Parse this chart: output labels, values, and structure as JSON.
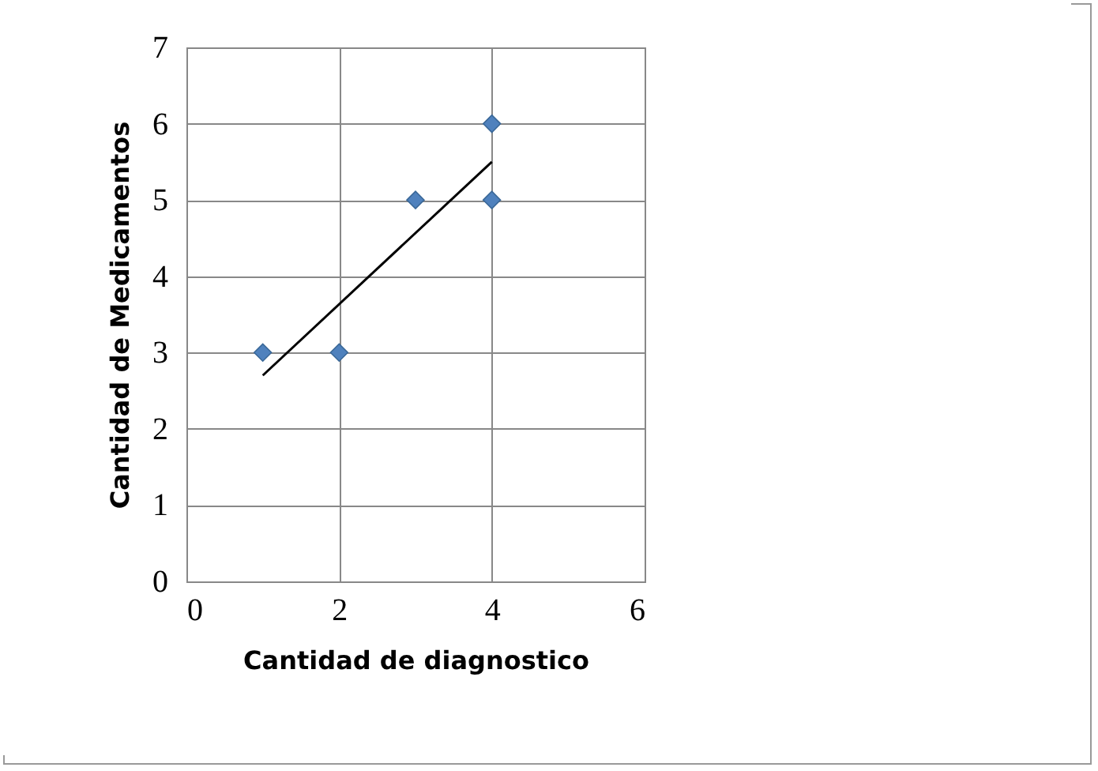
{
  "chart_data": {
    "type": "scatter",
    "xlabel": "Cantidad de diagnostico",
    "ylabel": "Cantidad de Medicamentos",
    "xlim": [
      0,
      6
    ],
    "xticks": [
      0,
      2,
      4,
      6
    ],
    "ylim": [
      0,
      7
    ],
    "yticks": [
      0,
      1,
      2,
      3,
      4,
      5,
      6,
      7
    ],
    "grid": true,
    "series": [
      {
        "marker": "diamond",
        "color": "#4f81bd",
        "x": [
          1,
          2,
          3,
          4,
          4
        ],
        "values": [
          3,
          3,
          5,
          5,
          6
        ]
      },
      {
        "type": "line",
        "color": "#000000",
        "x": [
          1,
          4
        ],
        "values": [
          2.7,
          5.5
        ]
      }
    ]
  }
}
